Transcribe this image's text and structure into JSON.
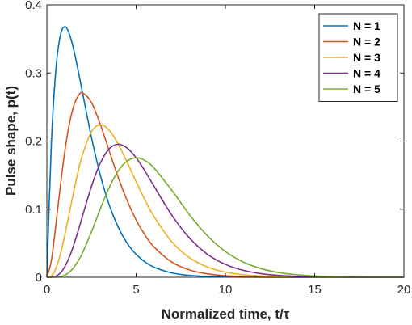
{
  "chart_data": {
    "type": "line",
    "title": "",
    "xlabel": "Normalized time, t/τ",
    "ylabel": "Pulse shape, p(t)",
    "xlim": [
      0,
      20
    ],
    "ylim": [
      0,
      0.4
    ],
    "xticks": [
      "0",
      "5",
      "10",
      "15",
      "20"
    ],
    "yticks": [
      "0",
      "0.1",
      "0.2",
      "0.3",
      "0.4"
    ],
    "grid": false,
    "legend_position": "top-right",
    "x": [
      0,
      0.25,
      0.5,
      0.75,
      1,
      1.25,
      1.5,
      1.75,
      2,
      2.5,
      3,
      3.5,
      4,
      4.5,
      5,
      5.5,
      6,
      7,
      8,
      9,
      10,
      11,
      12,
      13,
      14,
      15,
      16,
      17,
      18,
      19,
      20
    ],
    "series": [
      {
        "name": "N = 1",
        "color": "#0072BD",
        "values": [
          0,
          0.1947,
          0.3033,
          0.3543,
          0.3679,
          0.3581,
          0.3347,
          0.3041,
          0.2707,
          0.2052,
          0.1494,
          0.1057,
          0.0733,
          0.05,
          0.0337,
          0.0225,
          0.0149,
          0.0064,
          0.0027,
          0.0011,
          0.0005,
          0.0002,
          0.0001,
          0,
          0,
          0,
          0,
          0,
          0,
          0,
          0
        ]
      },
      {
        "name": "N = 2",
        "color": "#D95319",
        "values": [
          0,
          0.0243,
          0.0758,
          0.1329,
          0.1839,
          0.2238,
          0.251,
          0.2661,
          0.2707,
          0.2565,
          0.224,
          0.185,
          0.1465,
          0.1125,
          0.0842,
          0.0618,
          0.0446,
          0.0223,
          0.0107,
          0.005,
          0.0023,
          0.001,
          0.0004,
          0.0002,
          0.0001,
          0,
          0,
          0,
          0,
          0,
          0
        ]
      },
      {
        "name": "N = 3",
        "color": "#EDB120",
        "values": [
          0,
          0.002,
          0.0126,
          0.0332,
          0.0613,
          0.0932,
          0.1255,
          0.1552,
          0.1804,
          0.2138,
          0.224,
          0.2158,
          0.1954,
          0.1687,
          0.1404,
          0.1133,
          0.0892,
          0.0521,
          0.0286,
          0.015,
          0.0076,
          0.0037,
          0.0018,
          0.0008,
          0.0004,
          0.0002,
          0.0001,
          0,
          0,
          0,
          0
        ]
      },
      {
        "name": "N = 4",
        "color": "#7E2F8E",
        "values": [
          0,
          0.0001,
          0.0016,
          0.0062,
          0.0153,
          0.0291,
          0.0471,
          0.0679,
          0.0902,
          0.1336,
          0.168,
          0.1888,
          0.1954,
          0.1898,
          0.1755,
          0.1558,
          0.1339,
          0.0912,
          0.0573,
          0.0337,
          0.0189,
          0.0102,
          0.0053,
          0.0027,
          0.0013,
          0.0006,
          0.0003,
          0.0001,
          0.0001,
          0,
          0
        ]
      },
      {
        "name": "N = 5",
        "color": "#77AC30",
        "values": [
          0,
          0,
          0.0002,
          0.0009,
          0.0031,
          0.0073,
          0.0141,
          0.0238,
          0.0361,
          0.0668,
          0.1008,
          0.1322,
          0.1563,
          0.1708,
          0.1755,
          0.1714,
          0.1606,
          0.1277,
          0.0916,
          0.0607,
          0.0378,
          0.0224,
          0.0127,
          0.0069,
          0.0037,
          0.0019,
          0.0009,
          0.0005,
          0.0002,
          0.0001,
          0
        ]
      }
    ]
  }
}
